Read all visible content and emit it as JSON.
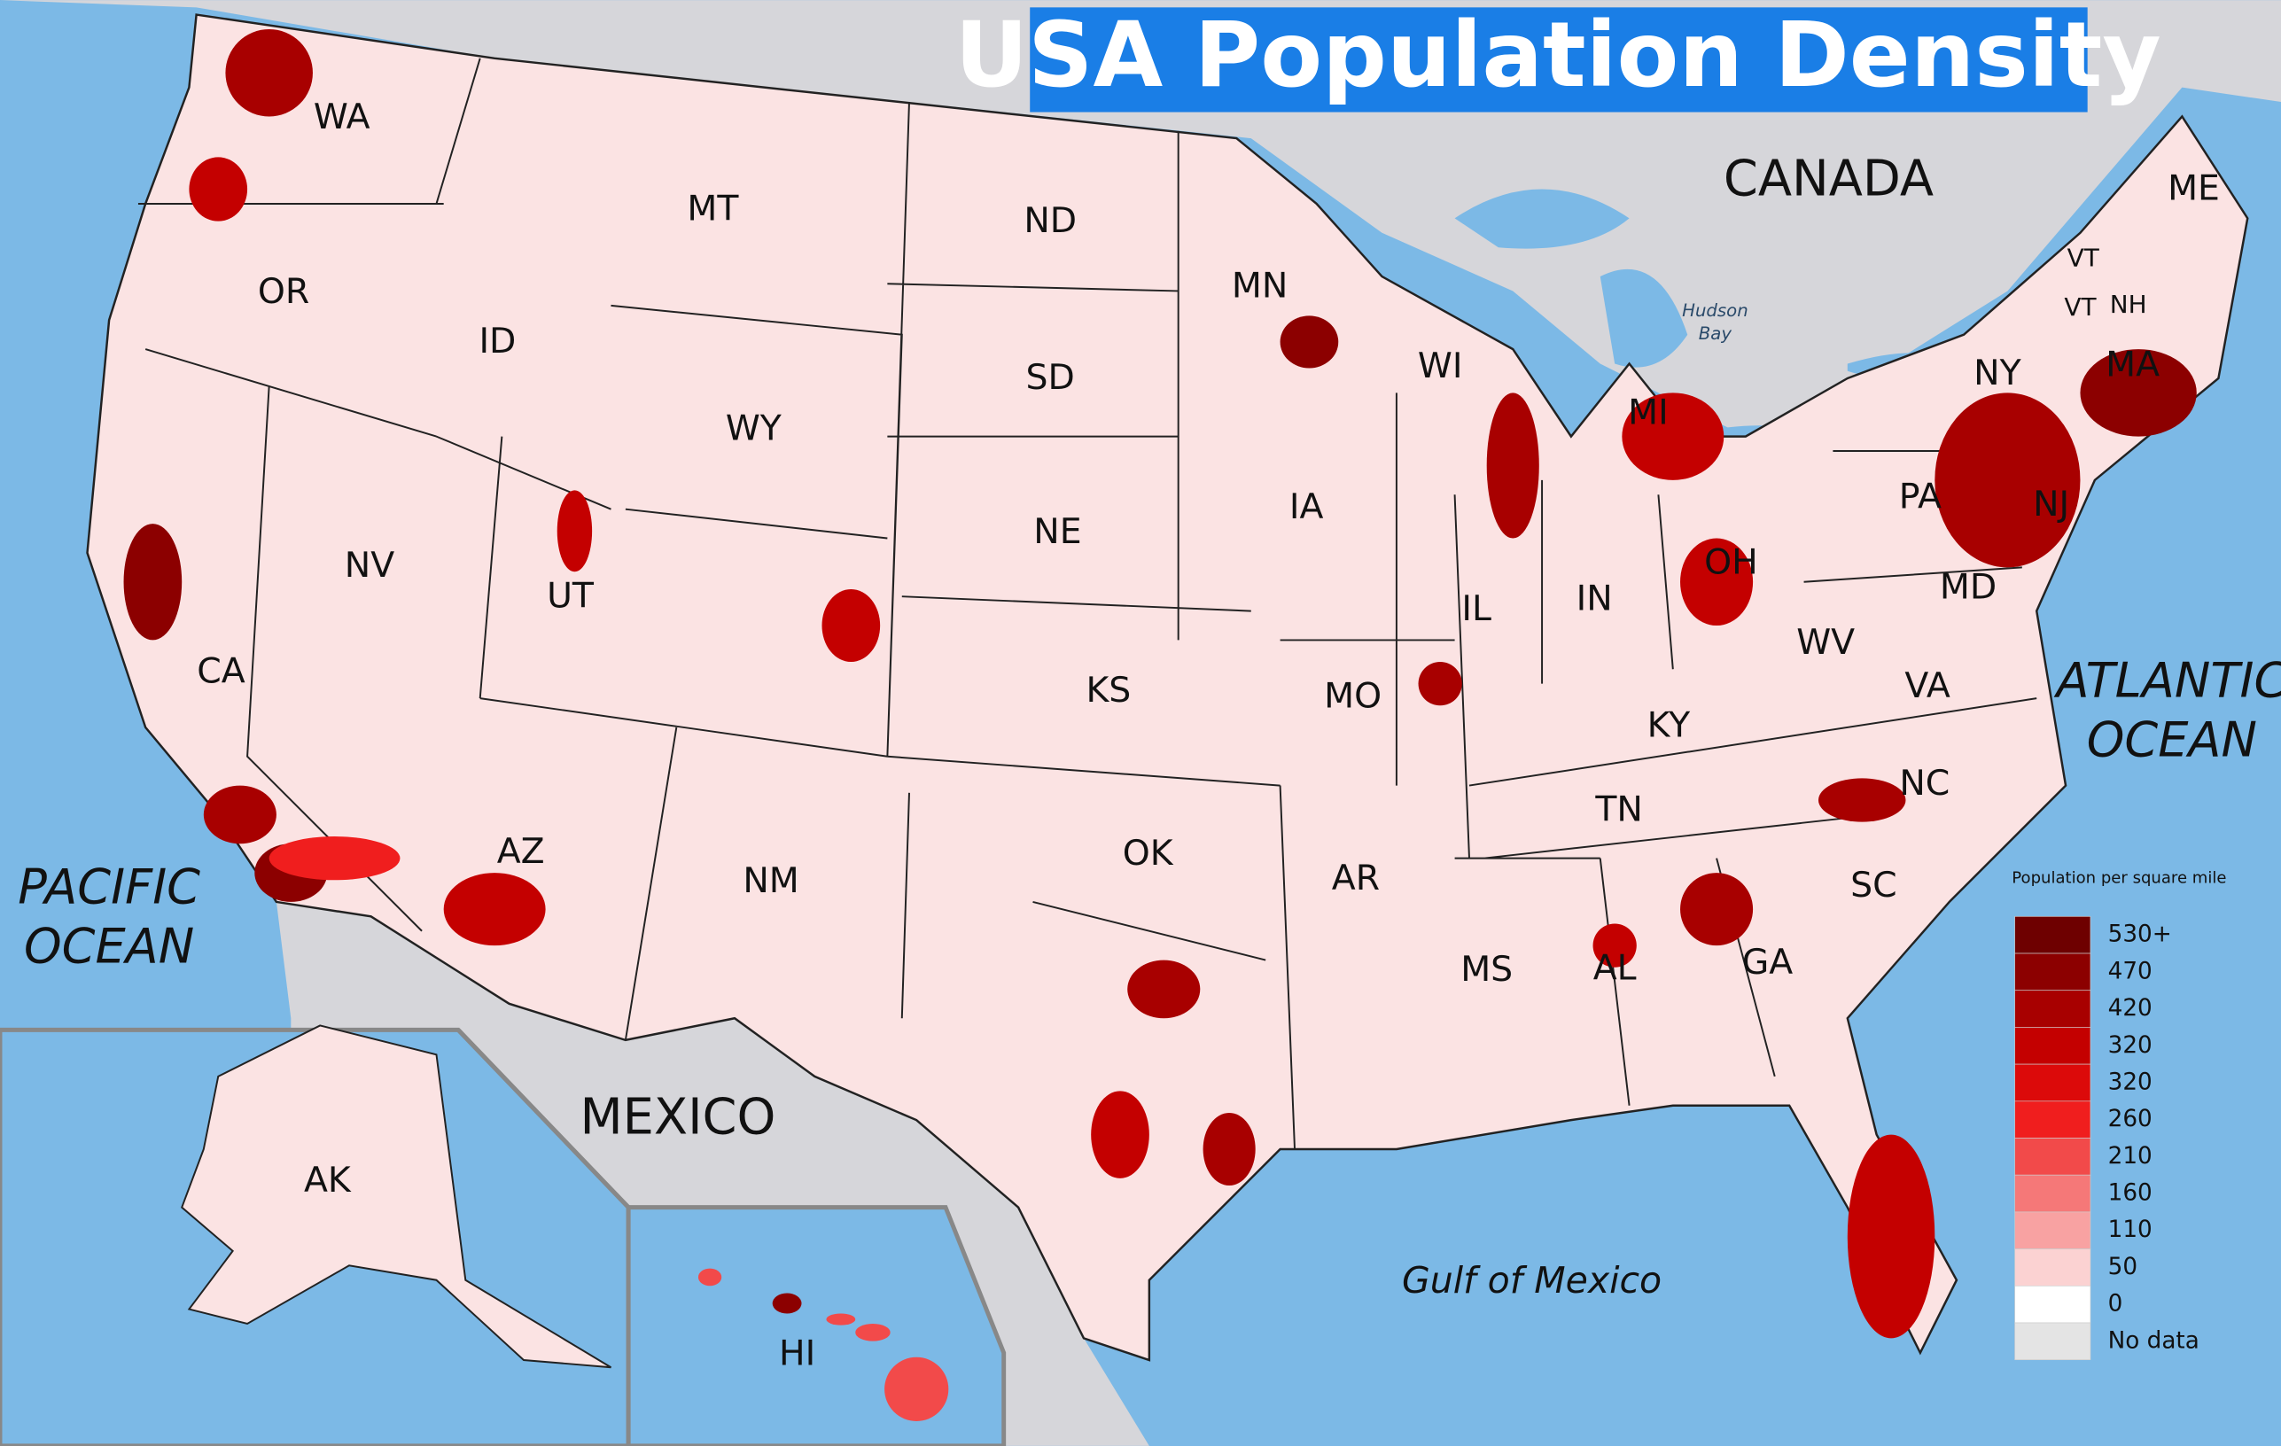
{
  "title": "USA Population Density",
  "state_labels": [
    "WA",
    "OR",
    "ID",
    "MT",
    "ND",
    "MN",
    "WI",
    "MI",
    "NY",
    "VT",
    "VT",
    "NH",
    "ME",
    "MA",
    "SD",
    "WY",
    "NE",
    "IA",
    "PA",
    "NJ",
    "OH",
    "IN",
    "IL",
    "NV",
    "UT",
    "CA",
    "MD",
    "WV",
    "VA",
    "KY",
    "MO",
    "KS",
    "TN",
    "NC",
    "AZ",
    "NM",
    "OK",
    "AR",
    "SC",
    "MS",
    "AL",
    "GA",
    "AK",
    "HI"
  ],
  "country_labels": [
    "CANADA",
    "MEXICO"
  ],
  "ocean_labels": [
    [
      "PACIFIC",
      "OCEAN"
    ],
    [
      "ATLANTIC",
      "OCEAN"
    ]
  ],
  "gulf_label": "Gulf of Mexico",
  "bay_label": [
    "Hudson",
    "Bay"
  ],
  "legend": {
    "title": "Population per square mile",
    "items": [
      {
        "label": "530+",
        "color": "#6e0000"
      },
      {
        "label": "470",
        "color": "#8c0000"
      },
      {
        "label": "420",
        "color": "#a80000"
      },
      {
        "label": "320",
        "color": "#c40000"
      },
      {
        "label": "320",
        "color": "#dc0a0a"
      },
      {
        "label": "260",
        "color": "#f01e1e"
      },
      {
        "label": "210",
        "color": "#f24a4a"
      },
      {
        "label": "160",
        "color": "#f57878"
      },
      {
        "label": "110",
        "color": "#f8a2a2"
      },
      {
        "label": "50",
        "color": "#fbd2d2"
      },
      {
        "label": "0",
        "color": "#ffffff"
      },
      {
        "label": "No data",
        "color": "#e4e4e4"
      }
    ]
  }
}
